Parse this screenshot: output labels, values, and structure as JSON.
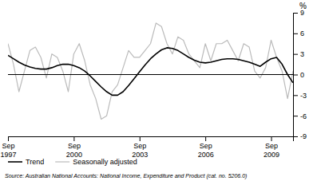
{
  "chart_data": {
    "type": "line",
    "y_label": "%",
    "source": "Source: Australian National Accounts: National Income, Expenditure and Product (cat. no. 5206.0)",
    "categories": [
      "Sep\n1997",
      null,
      null,
      null,
      null,
      null,
      null,
      null,
      null,
      null,
      null,
      null,
      "Sep\n2000",
      null,
      null,
      null,
      null,
      null,
      null,
      null,
      null,
      null,
      null,
      null,
      "Sep\n2003",
      null,
      null,
      null,
      null,
      null,
      null,
      null,
      null,
      null,
      null,
      null,
      "Sep\n2006",
      null,
      null,
      null,
      null,
      null,
      null,
      null,
      null,
      null,
      null,
      null,
      "Sep\n2009",
      null,
      null,
      null,
      null
    ],
    "series": [
      {
        "name": "Trend",
        "color": "#000000",
        "values": [
          2.8,
          2.3,
          1.8,
          1.4,
          1.1,
          0.9,
          0.8,
          0.8,
          1.0,
          1.3,
          1.5,
          1.5,
          1.3,
          1.0,
          0.5,
          -0.2,
          -1.0,
          -1.8,
          -2.5,
          -3.0,
          -3.0,
          -2.5,
          -1.6,
          -0.6,
          0.4,
          1.4,
          2.3,
          3.0,
          3.6,
          3.9,
          3.8,
          3.5,
          3.0,
          2.5,
          2.1,
          1.8,
          1.7,
          1.8,
          2.0,
          2.2,
          2.3,
          2.3,
          2.2,
          2.0,
          1.8,
          1.5,
          1.2,
          1.8,
          2.3,
          2.5,
          1.5,
          0.0,
          -1.2
        ]
      },
      {
        "name": "Seasonally adjusted",
        "color": "#bbbbbb",
        "values": [
          4.5,
          1.5,
          -2.5,
          0.5,
          3.5,
          4.0,
          2.5,
          -0.5,
          3.0,
          2.5,
          0.5,
          -2.5,
          3.0,
          4.5,
          2.0,
          -1.5,
          -3.5,
          -6.5,
          -6.0,
          -2.5,
          -1.5,
          1.0,
          3.5,
          2.5,
          2.5,
          3.5,
          4.5,
          7.5,
          7.0,
          4.5,
          3.0,
          5.5,
          5.0,
          3.0,
          2.0,
          1.0,
          4.5,
          2.0,
          4.5,
          4.5,
          5.0,
          3.5,
          2.0,
          4.5,
          4.0,
          0.5,
          -0.5,
          1.0,
          5.0,
          2.5,
          0.5,
          -3.5,
          0.5
        ]
      }
    ],
    "ylim": [
      -9,
      9
    ],
    "yticks": [
      -9,
      -6,
      -3,
      0,
      3,
      6,
      9
    ],
    "grid": false,
    "legend": "lower left"
  }
}
